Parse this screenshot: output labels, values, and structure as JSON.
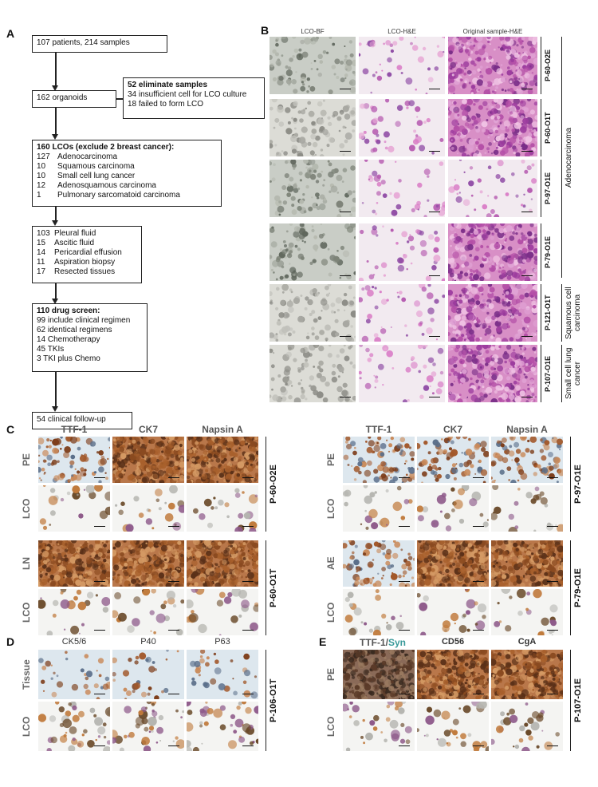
{
  "panels": {
    "a": "A",
    "b": "B",
    "c": "C",
    "d": "D",
    "e": "E"
  },
  "flow": {
    "box1": "107 patients, 214 samples",
    "box2": "162 organoids",
    "elim_title": "52 eliminate samples",
    "elim_l1": "34 insufficient cell for LCO culture",
    "elim_l2": "18 failed to form LCO",
    "lco_title": "160 LCOs (exclude 2 breast cancer):",
    "lco_items": [
      {
        "n": "127",
        "t": "Adenocarcinoma"
      },
      {
        "n": "10",
        "t": "Squamous carcinoma"
      },
      {
        "n": "10",
        "t": "Small cell lung cancer"
      },
      {
        "n": "12",
        "t": "Adenosquamous carcinoma"
      },
      {
        "n": "1",
        "t": "Pulmonary sarcomatoid carcinoma"
      }
    ],
    "src_items": [
      {
        "n": "103",
        "t": "Pleural fluid"
      },
      {
        "n": "15",
        "t": "Ascitic fluid"
      },
      {
        "n": "14",
        "t": "Pericardial effusion"
      },
      {
        "n": "11",
        "t": "Aspiration biopsy"
      },
      {
        "n": "17",
        "t": "Resected tissues"
      }
    ],
    "drug_title": "110 drug screen:",
    "drug_items": [
      "99 include clinical regimen",
      "62 identical regimens",
      "14 Chemotherapy",
      "45 TKIs",
      "3   TKI plus Chemo"
    ],
    "followup": "54  clinical follow-up"
  },
  "panelB": {
    "col_headers": [
      "LCO-BF",
      "LCO-H&E",
      "Original sample-H&E"
    ],
    "samples": [
      "P-60-O2E",
      "P-60-O1T",
      "P-97-O1E",
      "P-79-O1E",
      "P-121-O1T",
      "P-107-O1E"
    ],
    "groups": [
      "Adenocarcinoma",
      "Squamous cell carcinoma",
      "Small cell lung cancer"
    ]
  },
  "panelC": {
    "left_headers": [
      "TTF-1",
      "CK7",
      "Napsin A"
    ],
    "left_rows": [
      "PE",
      "LCO",
      "LN",
      "LCO"
    ],
    "left_samples": [
      "P-60-O2E",
      "P-60-O1T"
    ],
    "right_headers": [
      "TTF-1",
      "CK7",
      "Napsin A"
    ],
    "right_rows": [
      "PE",
      "LCO",
      "AE",
      "LCO"
    ],
    "right_samples": [
      "P-97-O1E",
      "P-79-O1E"
    ]
  },
  "panelD": {
    "headers": [
      "CK5/6",
      "P40",
      "P63"
    ],
    "rows": [
      "Tissue",
      "LCO"
    ],
    "sample": "P-106-O1T"
  },
  "panelE": {
    "header_ttf": "TTF-1/",
    "header_syn": "Syn",
    "headers": [
      "CD56",
      "CgA"
    ],
    "rows": [
      "PE",
      "LCO"
    ],
    "sample": "P-107-O1E"
  },
  "colors": {
    "he_pink": "#e8a8d0",
    "he_purple": "#a04aa8",
    "bf_gray": "#c8ccc4",
    "ihc_bg": "#dbe6ef",
    "ihc_brown": "#a85a22",
    "syn_teal": "#3a9a9a"
  }
}
